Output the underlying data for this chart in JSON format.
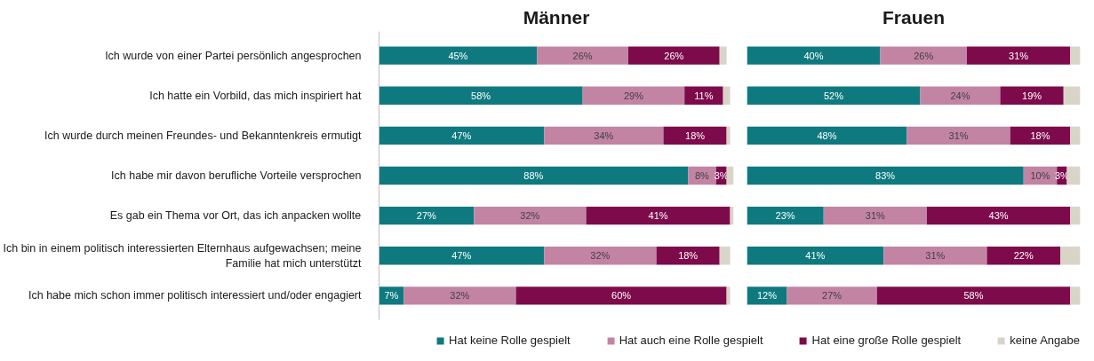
{
  "chart_data": [
    {
      "type": "bar",
      "orientation": "horizontal",
      "stacked": true,
      "title": "Männer",
      "legend": "bottom",
      "categories": [
        "Ich wurde von einer Partei persönlich angesprochen",
        "Ich hatte ein Vorbild, das mich inspiriert hat",
        "Ich wurde durch meinen Freundes- und Bekanntenkreis ermutigt",
        "Ich habe mir davon berufliche Vorteile versprochen",
        "Es gab ein Thema vor Ort, das ich anpacken wollte",
        "Ich bin in einem politisch interessierten Elternhaus aufgewachsen; meine Familie hat mich unterstützt",
        "Ich habe mich schon immer politisch interessiert und/oder engagiert"
      ],
      "series": [
        {
          "name": "Hat keine Rolle gespielt",
          "color": "#0e7a7f",
          "values": [
            45,
            58,
            47,
            88,
            27,
            47,
            7
          ],
          "value_labels": [
            "45%",
            "58%",
            "47%",
            "88%",
            "27%",
            "47%",
            "7%"
          ]
        },
        {
          "name": "Hat auch eine Rolle gespielt",
          "color": "#c384a4",
          "values": [
            26,
            29,
            34,
            8,
            32,
            32,
            32
          ],
          "value_labels": [
            "26%",
            "29%",
            "34%",
            "8%",
            "32%",
            "32%",
            "32%"
          ]
        },
        {
          "name": "Hat eine große Rolle gespielt",
          "color": "#7d0a4b",
          "values": [
            26,
            11,
            18,
            3,
            41,
            18,
            60
          ],
          "value_labels": [
            "26%",
            "11%",
            "18%",
            "3%",
            "41%",
            "18%",
            "60%"
          ]
        },
        {
          "name": "keine Angabe",
          "color": "#d9d4c8",
          "values": [
            2,
            2,
            1,
            2,
            1,
            3,
            1
          ],
          "value_labels": [
            null,
            null,
            null,
            null,
            null,
            null,
            null
          ]
        }
      ]
    },
    {
      "type": "bar",
      "orientation": "horizontal",
      "stacked": true,
      "title": "Frauen",
      "tick_labels": false,
      "categories": [
        null,
        null,
        null,
        null,
        null,
        null,
        null
      ],
      "series": [
        {
          "color": "#0e7a7f",
          "values": [
            40,
            52,
            48,
            83,
            23,
            41,
            12
          ],
          "value_labels": [
            "40%",
            "52%",
            "48%",
            "83%",
            "23%",
            "41%",
            "12%"
          ]
        },
        {
          "color": "#c384a4",
          "values": [
            26,
            24,
            31,
            10,
            31,
            31,
            27
          ],
          "value_labels": [
            "26%",
            "24%",
            "31%",
            "10%",
            "31%",
            "31%",
            "27%"
          ]
        },
        {
          "color": "#7d0a4b",
          "values": [
            31,
            19,
            18,
            3,
            43,
            22,
            58
          ],
          "value_labels": [
            "31%",
            "19%",
            "18%",
            "3%",
            "43%",
            "22%",
            "58%"
          ]
        },
        {
          "color": "#d9d4c8",
          "values": [
            3,
            5,
            3,
            4,
            3,
            6,
            3
          ],
          "value_labels": [
            null,
            null,
            null,
            null,
            null,
            null,
            null
          ]
        }
      ]
    }
  ]
}
